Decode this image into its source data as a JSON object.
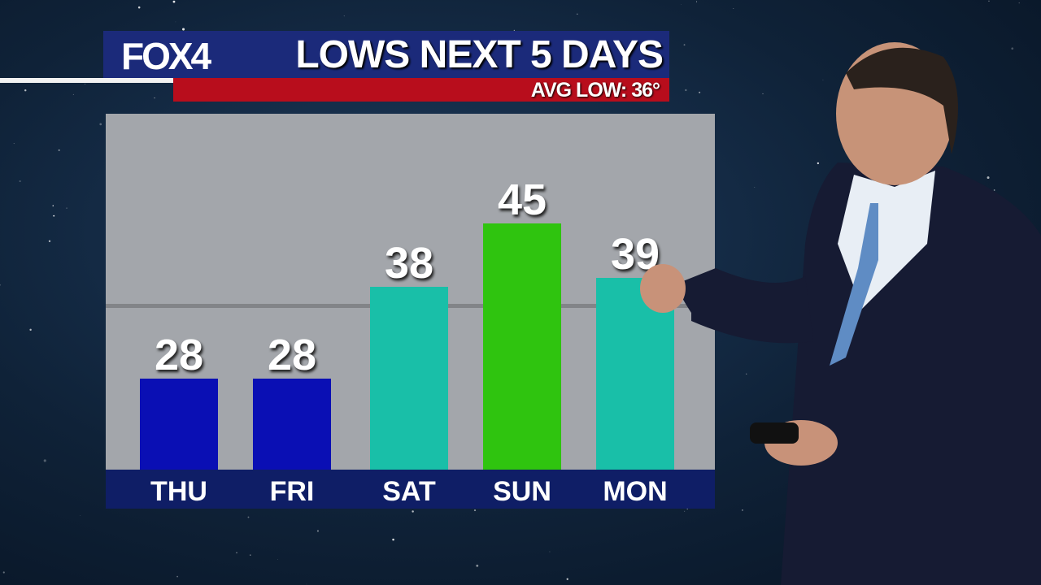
{
  "header": {
    "logo": "FOX4",
    "title": "LOWS NEXT 5 DAYS",
    "avg_low": "AVG LOW: 36°"
  },
  "chart_data": {
    "type": "bar",
    "title": "LOWS NEXT 5 DAYS",
    "categories": [
      "THU",
      "FRI",
      "SAT",
      "SUN",
      "MON"
    ],
    "values": [
      28,
      28,
      38,
      45,
      39
    ],
    "colors": [
      "#0a0fb4",
      "#0a0fb4",
      "#19bfa8",
      "#2fc40f",
      "#19bfa8"
    ],
    "reference_line": {
      "label": "AVG LOW: 36°",
      "value": 36
    },
    "ylim": [
      18,
      57
    ],
    "grid": false
  }
}
